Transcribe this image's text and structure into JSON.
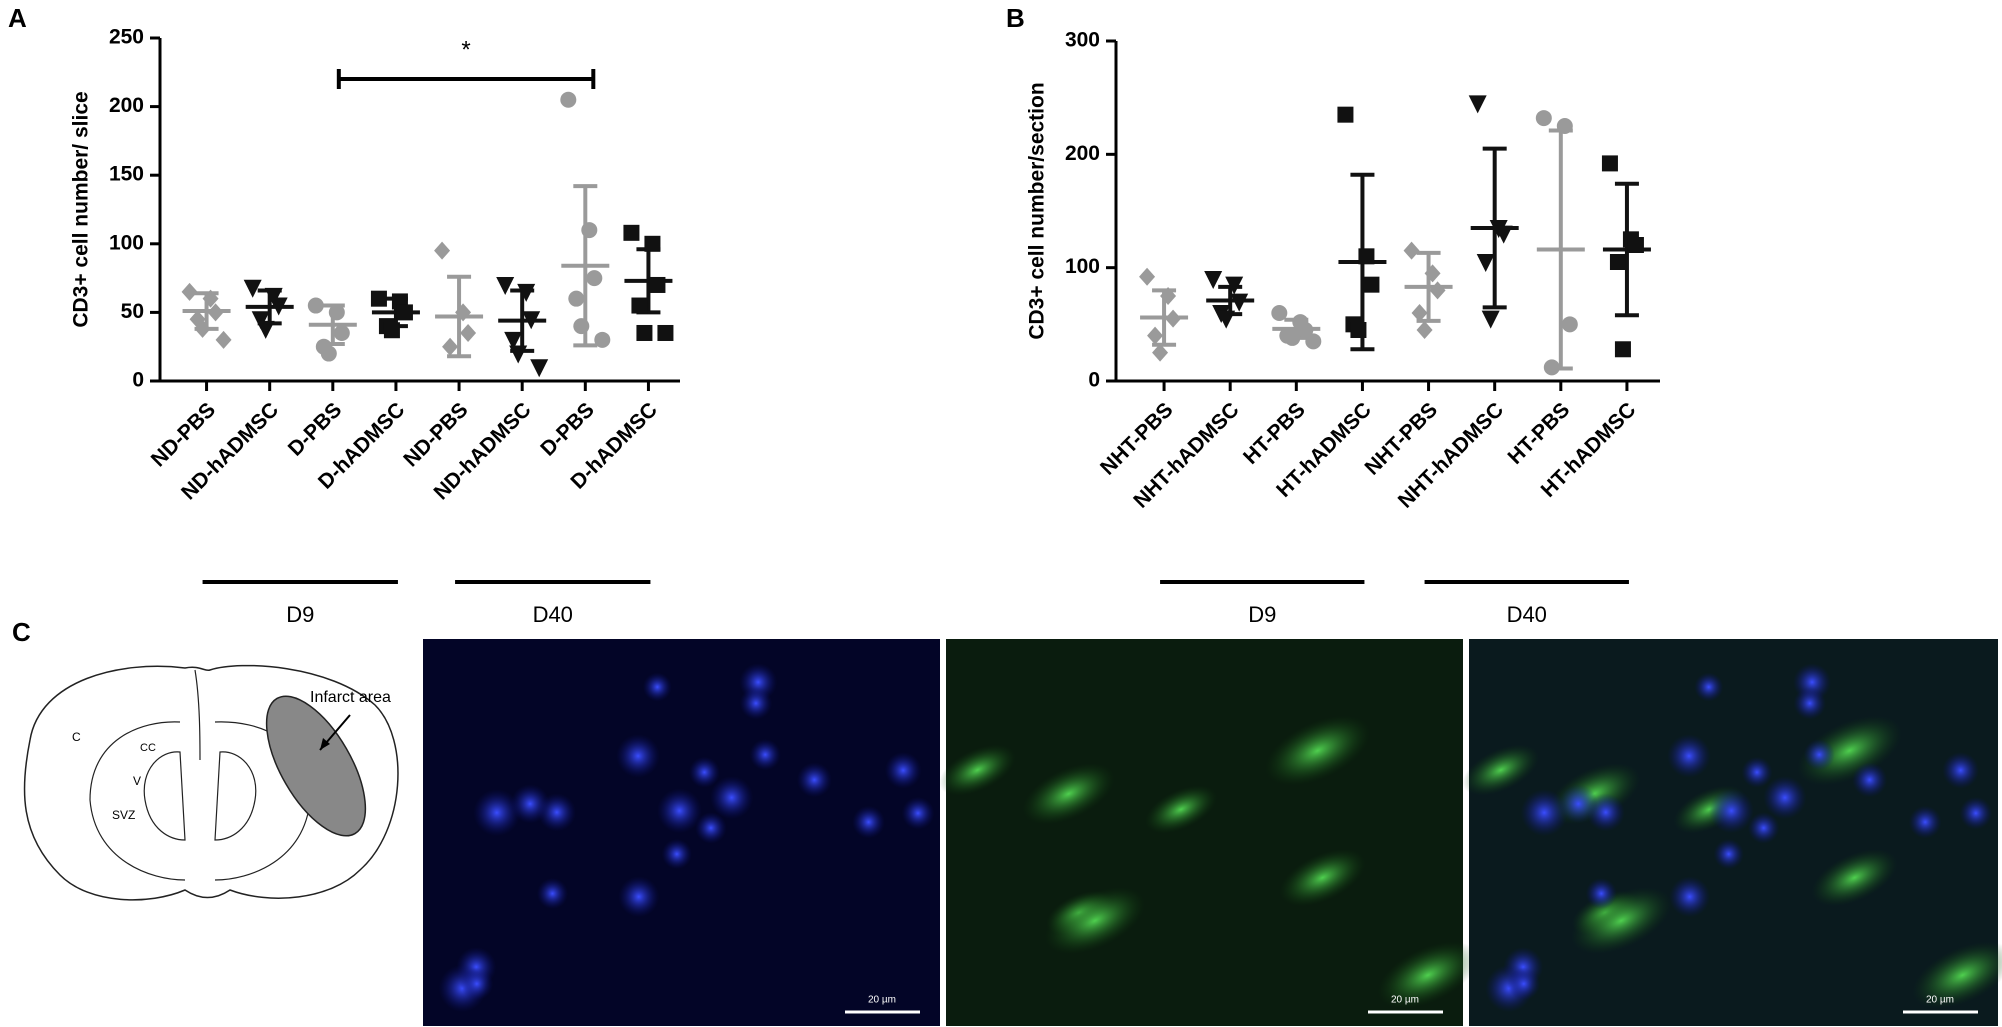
{
  "chart_data": [
    {
      "type": "dot",
      "panel": "A",
      "y_label": "CD3+ cell number/ slice",
      "categories": [
        "ND-PBS",
        "ND-hADMSC",
        "D-PBS",
        "D-hADMSC",
        "ND-PBS",
        "ND-hADMSC",
        "D-PBS",
        "D-hADMSC"
      ],
      "colors": [
        "#9a9a9a",
        "#111111",
        "#9a9a9a",
        "#111111",
        "#9a9a9a",
        "#111111",
        "#9a9a9a",
        "#111111"
      ],
      "markers": [
        "diamond",
        "triangle",
        "circle",
        "square",
        "diamond",
        "triangle",
        "circle",
        "square"
      ],
      "points": [
        [
          65,
          60,
          50,
          45,
          38,
          30
        ],
        [
          68,
          62,
          55,
          45,
          38
        ],
        [
          55,
          50,
          35,
          25,
          20
        ],
        [
          60,
          58,
          50,
          40,
          37
        ],
        [
          95,
          50,
          35,
          25
        ],
        [
          70,
          65,
          45,
          30,
          20,
          10
        ],
        [
          205,
          110,
          75,
          60,
          40,
          30
        ],
        [
          108,
          100,
          70,
          55,
          35,
          35
        ]
      ],
      "mean": [
        51,
        54,
        41,
        50,
        47,
        44,
        84,
        73
      ],
      "sd": [
        13,
        12,
        14,
        10,
        29,
        22,
        58,
        23
      ],
      "ylim": [
        0,
        250
      ],
      "yticks": [
        0,
        50,
        100,
        150,
        200,
        250
      ],
      "groups": [
        "D9",
        "D40"
      ],
      "annotation": "*"
    },
    {
      "type": "dot",
      "panel": "B",
      "y_label": "CD3+ cell number/section",
      "categories": [
        "NHT-PBS",
        "NHT-hADMSC",
        "HT-PBS",
        "HT-hADMSC",
        "NHT-PBS",
        "NHT-hADMSC",
        "HT-PBS",
        "HT-hADMSC"
      ],
      "colors": [
        "#9a9a9a",
        "#111111",
        "#9a9a9a",
        "#111111",
        "#9a9a9a",
        "#111111",
        "#9a9a9a",
        "#111111"
      ],
      "markers": [
        "diamond",
        "triangle",
        "circle",
        "square",
        "diamond",
        "triangle",
        "circle",
        "square"
      ],
      "points": [
        [
          92,
          75,
          55,
          40,
          25
        ],
        [
          90,
          85,
          70,
          60,
          55
        ],
        [
          60,
          52,
          45,
          40,
          38,
          35
        ],
        [
          235,
          110,
          85,
          50,
          45
        ],
        [
          115,
          95,
          80,
          60,
          45
        ],
        [
          245,
          135,
          130,
          105,
          55
        ],
        [
          232,
          225,
          50,
          12
        ],
        [
          192,
          125,
          120,
          105,
          28
        ]
      ],
      "mean": [
        56,
        71,
        46,
        105,
        83,
        135,
        116,
        116
      ],
      "sd": [
        24,
        12,
        8,
        77,
        30,
        70,
        105,
        58
      ],
      "ylim": [
        0,
        300
      ],
      "yticks": [
        0,
        100,
        200,
        300
      ],
      "groups": [
        "D9",
        "D40"
      ]
    }
  ],
  "figure": {
    "panel_c": "C",
    "diagram": {
      "infarct": "Infarct area",
      "cortex": "C",
      "cc": "CC",
      "ventricle": "V",
      "svz": "SVZ"
    },
    "scale_bars": [
      "20 µm",
      "20 µm",
      "20 µm"
    ]
  }
}
